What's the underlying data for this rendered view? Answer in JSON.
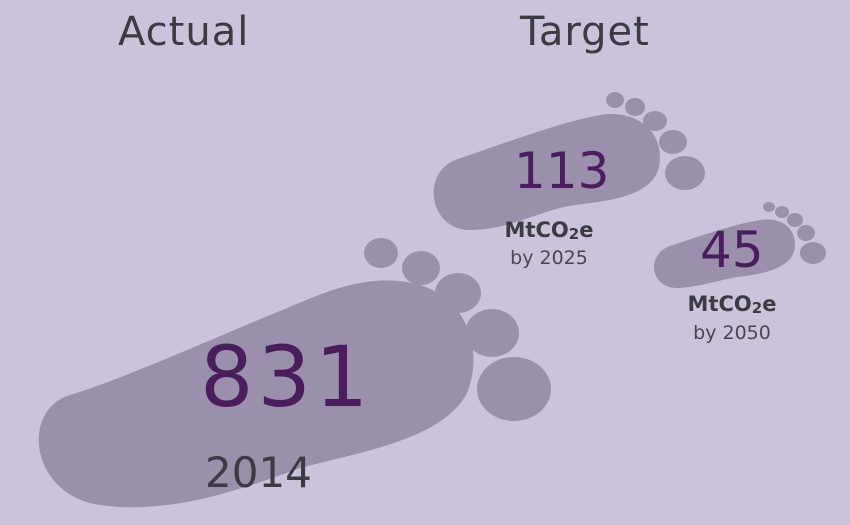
{
  "headings": {
    "actual": "Actual",
    "target": "Target"
  },
  "chart_data": {
    "type": "pictorial",
    "title": "",
    "unit_main": "MtCO",
    "unit_sub": "2",
    "unit_suffix": "e",
    "points": [
      {
        "group": "Actual",
        "label": "2014",
        "value": 831
      },
      {
        "group": "Target",
        "label": "by 2025",
        "value": 113
      },
      {
        "group": "Target",
        "label": "by 2050",
        "value": 45
      }
    ]
  },
  "colors": {
    "background": "#cbc3db",
    "footprint": "#9a90ac",
    "value_text": "#4a1d5c",
    "label_text": "#3c3a42"
  }
}
